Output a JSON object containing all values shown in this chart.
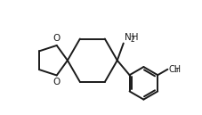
{
  "bg_color": "#ffffff",
  "line_color": "#1a1a1a",
  "line_width": 1.4,
  "figsize": [
    2.27,
    1.29
  ],
  "dpi": 100,
  "xlim": [
    0.0,
    10.5
  ],
  "ylim": [
    0.5,
    6.0
  ]
}
